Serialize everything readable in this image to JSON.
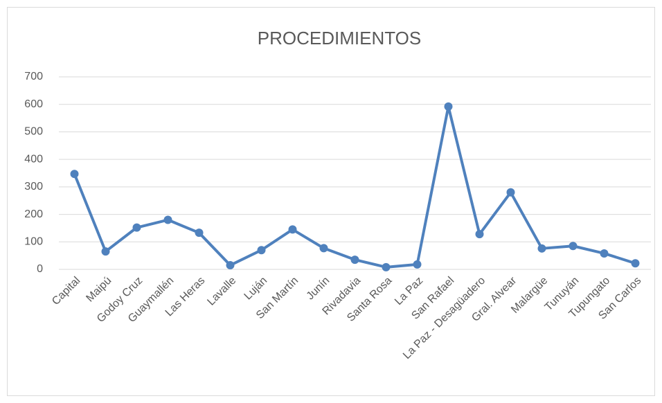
{
  "chart_data": {
    "type": "line",
    "title": "PROCEDIMIENTOS",
    "categories": [
      "Capital",
      "Maipú",
      "Godoy Cruz",
      "Guaymallén",
      "Las Heras",
      "Lavalle",
      "Luján",
      "San Martín",
      "Junín",
      "Rivadavia",
      "Santa Rosa",
      "La Paz",
      "San Rafael",
      "La Paz - Desagüadero",
      "Gral. Alvear",
      "Malargüe",
      "Tunuyán",
      "Tupungato",
      "San Carlos"
    ],
    "values": [
      347,
      65,
      152,
      180,
      133,
      15,
      70,
      145,
      77,
      35,
      8,
      18,
      592,
      128,
      280,
      76,
      85,
      58,
      22
    ],
    "color": "#4f81bd",
    "ylim": [
      0,
      700
    ],
    "yticks": [
      0,
      100,
      200,
      300,
      400,
      500,
      600,
      700
    ],
    "grid": true
  }
}
